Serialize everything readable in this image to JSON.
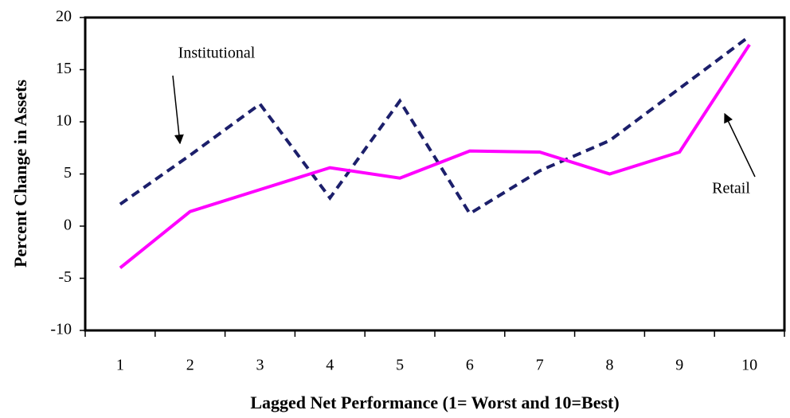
{
  "chart_data": {
    "type": "line",
    "x_label": "Lagged Net Performance (1= Worst and 10=Best)",
    "y_label": "Percent Change in Assets",
    "categories": [
      "1",
      "2",
      "3",
      "4",
      "5",
      "6",
      "7",
      "8",
      "9",
      "10"
    ],
    "series": [
      {
        "name": "Institutional",
        "color": "#1c1f6b",
        "dashed": true,
        "values": [
          2.1,
          6.8,
          11.7,
          2.7,
          12.0,
          1.2,
          5.3,
          8.2,
          13.2,
          18.2
        ]
      },
      {
        "name": "Retail",
        "color": "#ff00ff",
        "dashed": false,
        "values": [
          -4.0,
          1.4,
          3.5,
          5.6,
          4.6,
          7.2,
          7.1,
          5.0,
          7.1,
          17.4
        ]
      }
    ],
    "ylim": [
      -10,
      20
    ],
    "yticks": [
      -10,
      -5,
      0,
      5,
      10,
      15,
      20
    ],
    "grid": false
  }
}
